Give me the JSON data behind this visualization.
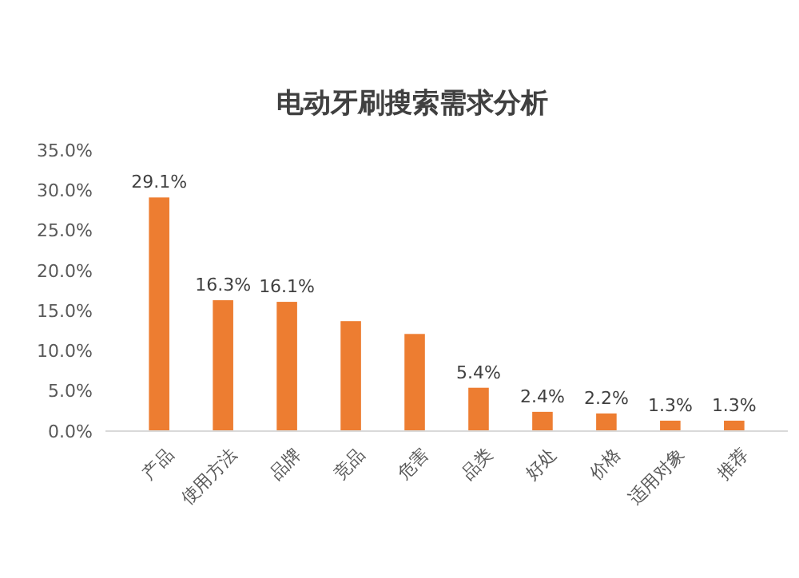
{
  "chart_data": {
    "type": "bar",
    "title": "电动牙刷搜索需求分析",
    "categories": [
      "产品",
      "使用方法",
      "品牌",
      "竞品",
      "危害",
      "品类",
      "好处",
      "价格",
      "适用对象",
      "推荐"
    ],
    "values": [
      29.1,
      16.3,
      16.1,
      13.7,
      12.1,
      5.4,
      2.4,
      2.2,
      1.3,
      1.3
    ],
    "value_labels": [
      "29.1%",
      "16.3%",
      "16.1%",
      null,
      null,
      "5.4%",
      "2.4%",
      "2.2%",
      "1.3%",
      "1.3%"
    ],
    "color": "#ed7d31",
    "ylim": [
      0,
      35
    ],
    "yticks": [
      {
        "value": 0,
        "label": "0.0%"
      },
      {
        "value": 5,
        "label": "5.0%"
      },
      {
        "value": 10,
        "label": "10.0%"
      },
      {
        "value": 15,
        "label": "15.0%"
      },
      {
        "value": 20,
        "label": "20.0%"
      },
      {
        "value": 25,
        "label": "25.0%"
      },
      {
        "value": 30,
        "label": "30.0%"
      },
      {
        "value": 35,
        "label": "35.0%"
      }
    ],
    "grid": false
  }
}
